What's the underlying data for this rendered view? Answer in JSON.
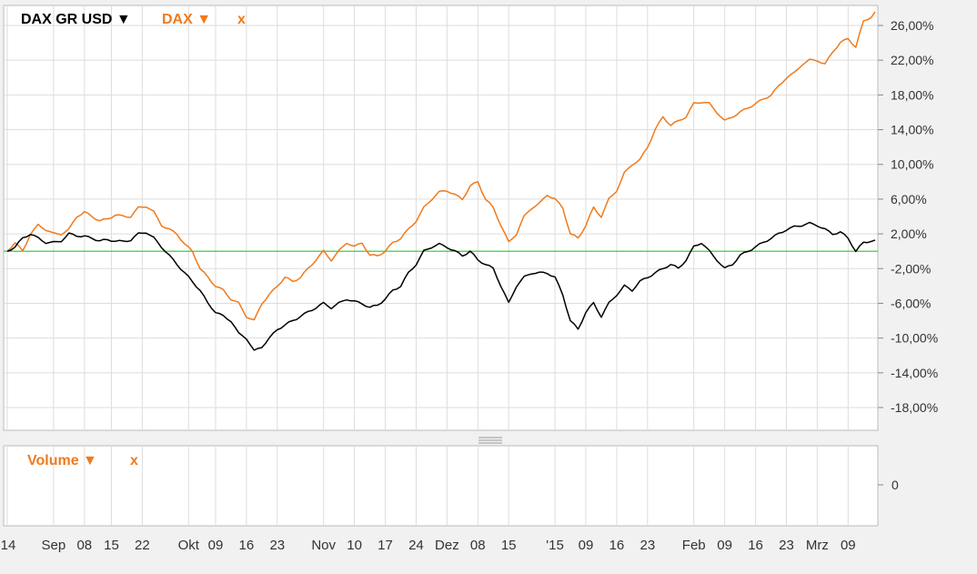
{
  "colors": {
    "dax": "#f07a1c",
    "dax_gr_usd": "#000000",
    "baseline": "#22cc22",
    "grid": "#dddddd",
    "panel_bg": "#ffffff",
    "page_bg": "#f1f1f1"
  },
  "legend": {
    "series1_label": "DAX GR USD ▼",
    "series2_label": "DAX ▼",
    "close_label": "x"
  },
  "volume_panel": {
    "label": "Volume ▼",
    "close_label": "x",
    "y_tick": "0"
  },
  "splitter_icon": "drag-handle-icon",
  "chart_data": {
    "type": "line",
    "ylim": [
      -20,
      28
    ],
    "y_ticks": [
      26,
      22,
      18,
      14,
      10,
      6,
      2,
      -2,
      -6,
      -10,
      -14,
      -18
    ],
    "y_tick_labels": [
      "26,00%",
      "22,00%",
      "18,00%",
      "14,00%",
      "10,00%",
      "6,00%",
      "2,00%",
      "-2,00%",
      "-6,00%",
      "-10,00%",
      "-14,00%",
      "-18,00%"
    ],
    "baseline": 0,
    "x_tick_labels": [
      "14",
      "Sep",
      "08",
      "15",
      "22",
      "Okt",
      "09",
      "16",
      "23",
      "Nov",
      "10",
      "17",
      "24",
      "Dez",
      "08",
      "15",
      "'15",
      "09",
      "16",
      "23",
      "Feb",
      "09",
      "16",
      "23",
      "Mrz",
      "09"
    ],
    "x_tick_index": [
      0,
      12,
      20,
      27,
      35,
      47,
      54,
      62,
      70,
      82,
      90,
      98,
      106,
      114,
      122,
      130,
      142,
      150,
      158,
      166,
      178,
      186,
      194,
      202,
      210,
      218
    ],
    "n_points": 226,
    "series": [
      {
        "name": "DAX",
        "keypoints": [
          [
            0,
            0
          ],
          [
            2,
            1
          ],
          [
            4,
            0
          ],
          [
            6,
            2
          ],
          [
            8,
            3
          ],
          [
            10,
            2.5
          ],
          [
            12,
            2
          ],
          [
            14,
            2
          ],
          [
            16,
            2.5
          ],
          [
            18,
            4
          ],
          [
            20,
            4.5
          ],
          [
            22,
            4
          ],
          [
            24,
            3.5
          ],
          [
            26,
            3.7
          ],
          [
            28,
            4.2
          ],
          [
            30,
            4
          ],
          [
            32,
            4
          ],
          [
            34,
            5
          ],
          [
            36,
            5.2
          ],
          [
            38,
            4.5
          ],
          [
            40,
            3
          ],
          [
            42,
            2.5
          ],
          [
            44,
            2
          ],
          [
            46,
            0.8
          ],
          [
            48,
            0
          ],
          [
            50,
            -2
          ],
          [
            52,
            -3
          ],
          [
            54,
            -4
          ],
          [
            56,
            -4.5
          ],
          [
            58,
            -5.5
          ],
          [
            60,
            -6
          ],
          [
            62,
            -7.5
          ],
          [
            64,
            -8
          ],
          [
            66,
            -6
          ],
          [
            68,
            -5
          ],
          [
            70,
            -4
          ],
          [
            72,
            -3
          ],
          [
            74,
            -3.5
          ],
          [
            76,
            -3
          ],
          [
            78,
            -2
          ],
          [
            80,
            -1
          ],
          [
            82,
            0
          ],
          [
            84,
            -1
          ],
          [
            86,
            0
          ],
          [
            88,
            1
          ],
          [
            90,
            0.5
          ],
          [
            92,
            1
          ],
          [
            94,
            -0.5
          ],
          [
            96,
            -0.5
          ],
          [
            98,
            0
          ],
          [
            100,
            1
          ],
          [
            102,
            1.5
          ],
          [
            104,
            2.5
          ],
          [
            106,
            3.5
          ],
          [
            108,
            5
          ],
          [
            110,
            6
          ],
          [
            112,
            6.8
          ],
          [
            114,
            7
          ],
          [
            116,
            6.5
          ],
          [
            118,
            6
          ],
          [
            120,
            7.5
          ],
          [
            122,
            8
          ],
          [
            124,
            6
          ],
          [
            126,
            5
          ],
          [
            128,
            3
          ],
          [
            130,
            1
          ],
          [
            132,
            2
          ],
          [
            134,
            4
          ],
          [
            136,
            5
          ],
          [
            138,
            5.5
          ],
          [
            140,
            6.5
          ],
          [
            142,
            6
          ],
          [
            144,
            5
          ],
          [
            146,
            2
          ],
          [
            148,
            1.5
          ],
          [
            150,
            3
          ],
          [
            152,
            5
          ],
          [
            154,
            4
          ],
          [
            156,
            6
          ],
          [
            158,
            7
          ],
          [
            160,
            9
          ],
          [
            162,
            10
          ],
          [
            164,
            10.5
          ],
          [
            166,
            12
          ],
          [
            168,
            14
          ],
          [
            170,
            15.5
          ],
          [
            172,
            14.5
          ],
          [
            174,
            15
          ],
          [
            176,
            15.5
          ],
          [
            178,
            17
          ],
          [
            180,
            17.2
          ],
          [
            182,
            17
          ],
          [
            184,
            16
          ],
          [
            186,
            15
          ],
          [
            188,
            15.5
          ],
          [
            190,
            16
          ],
          [
            192,
            16.5
          ],
          [
            194,
            17
          ],
          [
            196,
            17.5
          ],
          [
            198,
            18
          ],
          [
            200,
            19
          ],
          [
            202,
            20
          ],
          [
            204,
            20.5
          ],
          [
            206,
            21.5
          ],
          [
            208,
            22
          ],
          [
            210,
            22
          ],
          [
            212,
            21.5
          ],
          [
            214,
            23
          ],
          [
            216,
            24
          ],
          [
            218,
            24.5
          ],
          [
            220,
            23.5
          ],
          [
            222,
            26.5
          ],
          [
            224,
            27
          ],
          [
            225,
            27.5
          ]
        ]
      },
      {
        "name": "DAX GR USD",
        "keypoints": [
          [
            0,
            0
          ],
          [
            2,
            0.5
          ],
          [
            4,
            1.5
          ],
          [
            6,
            2
          ],
          [
            8,
            1.5
          ],
          [
            10,
            1
          ],
          [
            12,
            1
          ],
          [
            14,
            1.2
          ],
          [
            16,
            2
          ],
          [
            18,
            1.8
          ],
          [
            20,
            1.7
          ],
          [
            22,
            1.5
          ],
          [
            24,
            1.2
          ],
          [
            26,
            1.3
          ],
          [
            28,
            1.2
          ],
          [
            30,
            1.1
          ],
          [
            32,
            1.3
          ],
          [
            34,
            2
          ],
          [
            36,
            2.2
          ],
          [
            38,
            1.5
          ],
          [
            40,
            0.5
          ],
          [
            42,
            -0.5
          ],
          [
            44,
            -1.5
          ],
          [
            46,
            -2.5
          ],
          [
            48,
            -3.5
          ],
          [
            50,
            -4.5
          ],
          [
            52,
            -6
          ],
          [
            54,
            -7
          ],
          [
            56,
            -7.5
          ],
          [
            58,
            -8
          ],
          [
            60,
            -9.5
          ],
          [
            62,
            -10
          ],
          [
            64,
            -11.5
          ],
          [
            66,
            -11
          ],
          [
            68,
            -10
          ],
          [
            70,
            -9
          ],
          [
            72,
            -8.5
          ],
          [
            74,
            -8
          ],
          [
            76,
            -7.5
          ],
          [
            78,
            -7
          ],
          [
            80,
            -6.5
          ],
          [
            82,
            -6
          ],
          [
            84,
            -6.5
          ],
          [
            86,
            -6
          ],
          [
            88,
            -5.5
          ],
          [
            90,
            -5.8
          ],
          [
            92,
            -6
          ],
          [
            94,
            -6.5
          ],
          [
            96,
            -6.2
          ],
          [
            98,
            -5.5
          ],
          [
            100,
            -4.5
          ],
          [
            102,
            -4
          ],
          [
            104,
            -2.5
          ],
          [
            106,
            -1.5
          ],
          [
            108,
            0
          ],
          [
            110,
            0.5
          ],
          [
            112,
            0.8
          ],
          [
            114,
            0.5
          ],
          [
            116,
            0
          ],
          [
            118,
            -0.5
          ],
          [
            120,
            0
          ],
          [
            122,
            -1
          ],
          [
            124,
            -1.5
          ],
          [
            126,
            -2
          ],
          [
            128,
            -4
          ],
          [
            130,
            -6
          ],
          [
            132,
            -4
          ],
          [
            134,
            -3
          ],
          [
            136,
            -2.5
          ],
          [
            138,
            -2.5
          ],
          [
            140,
            -2.5
          ],
          [
            142,
            -3
          ],
          [
            144,
            -5
          ],
          [
            146,
            -8
          ],
          [
            148,
            -9
          ],
          [
            150,
            -7
          ],
          [
            152,
            -6
          ],
          [
            154,
            -7.5
          ],
          [
            156,
            -6
          ],
          [
            158,
            -5
          ],
          [
            160,
            -4
          ],
          [
            162,
            -4.5
          ],
          [
            164,
            -3.5
          ],
          [
            166,
            -3
          ],
          [
            168,
            -2.5
          ],
          [
            170,
            -2
          ],
          [
            172,
            -1.5
          ],
          [
            174,
            -2
          ],
          [
            176,
            -1
          ],
          [
            178,
            0.5
          ],
          [
            180,
            1
          ],
          [
            182,
            0
          ],
          [
            184,
            -1
          ],
          [
            186,
            -2
          ],
          [
            188,
            -1.5
          ],
          [
            190,
            -0.5
          ],
          [
            192,
            0
          ],
          [
            194,
            0.5
          ],
          [
            196,
            1
          ],
          [
            198,
            1.5
          ],
          [
            200,
            2
          ],
          [
            202,
            2.5
          ],
          [
            204,
            2.8
          ],
          [
            206,
            3
          ],
          [
            208,
            3.2
          ],
          [
            210,
            3
          ],
          [
            212,
            2.5
          ],
          [
            214,
            2
          ],
          [
            216,
            2.2
          ],
          [
            218,
            1.5
          ],
          [
            220,
            0
          ],
          [
            222,
            1
          ],
          [
            224,
            1.2
          ],
          [
            225,
            1.2
          ]
        ]
      }
    ],
    "volume": {
      "y_tick": 0
    },
    "grid": true,
    "legend_position": "top-left"
  }
}
